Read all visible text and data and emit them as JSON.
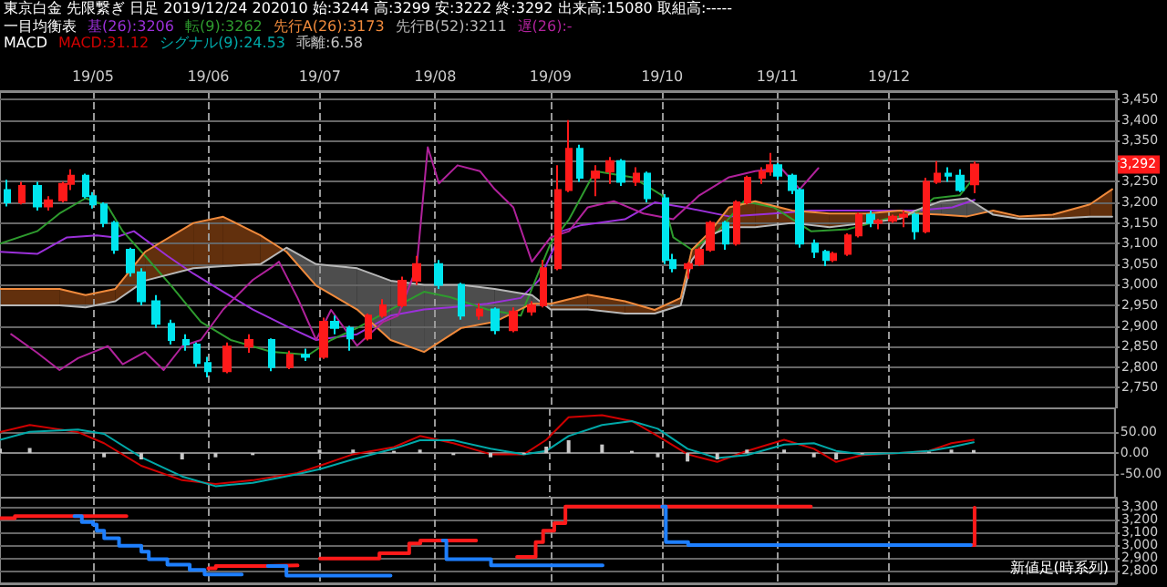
{
  "chart_data": [
    {
      "type": "candlestick",
      "title": "東京白金 先限繋ぎ 日足 2019/12/24 202010 始:3244 高:3299 安:3222 終:3292 出来高:15080 取組高:-----",
      "legend_title": "一目均衡表",
      "legend": "top left",
      "grid": true,
      "xlim": [
        "2019-04-06",
        "2020-01-31"
      ],
      "xticks": [
        {
          "value": "2019-05-01",
          "label": "19/05"
        },
        {
          "value": "2019-06-01",
          "label": "19/06"
        },
        {
          "value": "2019-07-01",
          "label": "19/07"
        },
        {
          "value": "2019-08-01",
          "label": "19/08"
        },
        {
          "value": "2019-09-01",
          "label": "19/09"
        },
        {
          "value": "2019-10-01",
          "label": "19/10"
        },
        {
          "value": "2019-11-01",
          "label": "19/11"
        },
        {
          "value": "2019-12-01",
          "label": "19/12"
        }
      ],
      "ylim": [
        2700,
        3470
      ],
      "yticks": [
        {
          "value": 2750,
          "label": "2,750"
        },
        {
          "value": 2800,
          "label": "2,800"
        },
        {
          "value": 2850,
          "label": "2,850"
        },
        {
          "value": 2900,
          "label": "2,900"
        },
        {
          "value": 2950,
          "label": "2,950"
        },
        {
          "value": 3000,
          "label": "3,000"
        },
        {
          "value": 3050,
          "label": "3,050"
        },
        {
          "value": 3100,
          "label": "3,100"
        },
        {
          "value": 3150,
          "label": "3,150"
        },
        {
          "value": 3200,
          "label": "3,200"
        },
        {
          "value": 3250,
          "label": "3,250"
        },
        {
          "value": 3300,
          "label": null
        },
        {
          "value": 3350,
          "label": "3,350"
        },
        {
          "value": 3400,
          "label": "3,400"
        },
        {
          "value": 3450,
          "label": "3,450"
        }
      ],
      "annotations": [
        {
          "text": "3,292",
          "y": 3292
        }
      ],
      "series": [
        {
          "colors": [
            "#00e5ee",
            "#ff1a1a",
            "#00e5ee",
            "#ff1a1a",
            "#ff1a1a",
            "#ff1a1a",
            "#00e5ee",
            "#00e5ee",
            "#00e5ee",
            "#00e5ee",
            "#00e5ee",
            "#00e5ee",
            "#00e5ee",
            "#00e5ee",
            "#00e5ee",
            "#00e5ee",
            "#00e5ee",
            "#ff1a1a",
            "#ff1a1a",
            "#00e5ee",
            "#ff1a1a",
            "#00e5ee",
            "#ff1a1a",
            "#00e5ee",
            "#00e5ee",
            "#ff1a1a",
            "#ff1a1a",
            "#ff1a1a",
            "#ff1a1a",
            "#00e5ee",
            "#00e5ee",
            "#ff1a1a",
            "#00e5ee",
            "#ff1a1a",
            "#ff1a1a",
            "#ff1a1a",
            "#ff1a1a",
            "#ff1a1a",
            "#00e5ee",
            "#ff1a1a",
            "#ff1a1a",
            "#00e5ee",
            "#ff1a1a",
            "#00e5ee",
            "#00e5ee",
            "#00e5ee",
            "#ff1a1a",
            "#ff1a1a",
            "#ff1a1a",
            "#00e5ee",
            "#ff1a1a",
            "#ff1a1a",
            "#ff1a1a",
            "#ff1a1a",
            "#00e5ee",
            "#00e5ee",
            "#00e5ee",
            "#00e5ee",
            "#00e5ee",
            "#ff1a1a",
            "#ff1a1a",
            "#ff1a1a",
            "#00e5ee",
            "#ff1a1a",
            "#ff1a1a",
            "#ff1a1a",
            "#00e5ee",
            "#ff1a1a",
            "#ff1a1a",
            "#00e5ee",
            "#00e5ee",
            "#ff1a1a"
          ],
          "x": [
            "2019-04-08",
            "2019-04-12",
            "2019-04-16",
            "2019-04-19",
            "2019-04-23",
            "2019-04-25",
            "2019-04-29",
            "2019-05-01",
            "2019-05-04",
            "2019-05-07",
            "2019-05-11",
            "2019-05-14",
            "2019-05-18",
            "2019-05-22",
            "2019-05-26",
            "2019-05-29",
            "2019-06-01",
            "2019-06-06",
            "2019-06-12",
            "2019-06-18",
            "2019-06-23",
            "2019-06-27",
            "2019-07-02",
            "2019-07-05",
            "2019-07-09",
            "2019-07-14",
            "2019-07-18",
            "2019-07-23",
            "2019-07-27",
            "2019-08-02",
            "2019-08-08",
            "2019-08-13",
            "2019-08-17",
            "2019-08-22",
            "2019-08-27",
            "2019-08-30",
            "2019-09-03",
            "2019-09-06",
            "2019-09-09",
            "2019-09-13",
            "2019-09-17",
            "2019-09-20",
            "2019-09-24",
            "2019-09-27",
            "2019-10-02",
            "2019-10-04",
            "2019-10-08",
            "2019-10-11",
            "2019-10-14",
            "2019-10-18",
            "2019-10-21",
            "2019-10-24",
            "2019-10-28",
            "2019-10-30",
            "2019-11-01",
            "2019-11-05",
            "2019-11-07",
            "2019-11-11",
            "2019-11-14",
            "2019-11-16",
            "2019-11-20",
            "2019-11-23",
            "2019-11-26",
            "2019-11-28",
            "2019-12-02",
            "2019-12-05",
            "2019-12-08",
            "2019-12-11",
            "2019-12-14",
            "2019-12-17",
            "2019-12-20",
            "2019-12-24"
          ],
          "ohlc": [
            [
              3230,
              3255,
              3190,
              3200
            ],
            [
              3200,
              3250,
              3195,
              3240
            ],
            [
              3240,
              3250,
              3180,
              3190
            ],
            [
              3190,
              3215,
              3180,
              3205
            ],
            [
              3205,
              3250,
              3200,
              3245
            ],
            [
              3245,
              3280,
              3230,
              3265
            ],
            [
              3265,
              3270,
              3210,
              3215
            ],
            [
              3215,
              3225,
              3185,
              3195
            ],
            [
              3195,
              3200,
              3140,
              3150
            ],
            [
              3150,
              3155,
              3075,
              3085
            ],
            [
              3085,
              3090,
              3020,
              3030
            ],
            [
              3030,
              3040,
              2950,
              2960
            ],
            [
              2960,
              2975,
              2895,
              2905
            ],
            [
              2905,
              2915,
              2855,
              2866
            ],
            [
              2866,
              2880,
              2840,
              2855
            ],
            [
              2855,
              2860,
              2800,
              2810
            ],
            [
              2810,
              2825,
              2775,
              2790
            ],
            [
              2790,
              2860,
              2785,
              2850
            ],
            [
              2850,
              2880,
              2835,
              2866
            ],
            [
              2866,
              2870,
              2790,
              2800
            ],
            [
              2800,
              2840,
              2795,
              2830
            ],
            [
              2830,
              2845,
              2815,
              2825
            ],
            [
              2825,
              2920,
              2820,
              2910
            ],
            [
              2910,
              2925,
              2880,
              2895
            ],
            [
              2895,
              2900,
              2840,
              2870
            ],
            [
              2870,
              2930,
              2865,
              2925
            ],
            [
              2925,
              2965,
              2920,
              2950
            ],
            [
              2950,
              3020,
              2945,
              3010
            ],
            [
              3010,
              3070,
              3000,
              3050
            ],
            [
              3050,
              3060,
              2990,
              3000
            ],
            [
              3000,
              3005,
              2915,
              2925
            ],
            [
              2925,
              2955,
              2915,
              2940
            ],
            [
              2940,
              2945,
              2880,
              2890
            ],
            [
              2890,
              2945,
              2885,
              2935
            ],
            [
              2935,
              2960,
              2925,
              2950
            ],
            [
              2950,
              3060,
              2945,
              3040
            ],
            [
              3040,
              3290,
              3035,
              3230
            ],
            [
              3230,
              3400,
              3225,
              3330
            ],
            [
              3330,
              3340,
              3250,
              3260
            ],
            [
              3260,
              3290,
              3215,
              3275
            ],
            [
              3275,
              3310,
              3245,
              3300
            ],
            [
              3300,
              3305,
              3240,
              3250
            ],
            [
              3250,
              3285,
              3240,
              3270
            ],
            [
              3270,
              3275,
              3200,
              3210
            ],
            [
              3210,
              3220,
              3050,
              3060
            ],
            [
              3060,
              3075,
              3030,
              3040
            ],
            [
              3040,
              3055,
              3015,
              3050
            ],
            [
              3050,
              3090,
              3045,
              3085
            ],
            [
              3085,
              3155,
              3080,
              3150
            ],
            [
              3150,
              3155,
              3085,
              3100
            ],
            [
              3100,
              3205,
              3095,
              3200
            ],
            [
              3200,
              3265,
              3195,
              3260
            ],
            [
              3260,
              3285,
              3245,
              3275
            ],
            [
              3275,
              3320,
              3265,
              3290
            ],
            [
              3290,
              3295,
              3255,
              3265
            ],
            [
              3265,
              3270,
              3220,
              3230
            ],
            [
              3230,
              3235,
              3090,
              3100
            ],
            [
              3100,
              3110,
              3065,
              3080
            ],
            [
              3080,
              3085,
              3045,
              3060
            ],
            [
              3060,
              3080,
              3055,
              3075
            ],
            [
              3075,
              3125,
              3070,
              3120
            ],
            [
              3120,
              3175,
              3115,
              3170
            ],
            [
              3170,
              3180,
              3140,
              3150
            ],
            [
              3150,
              3160,
              3135,
              3155
            ],
            [
              3155,
              3170,
              3150,
              3165
            ],
            [
              3165,
              3180,
              3140,
              3170
            ],
            [
              3170,
              3175,
              3110,
              3130
            ],
            [
              3130,
              3260,
              3125,
              3250
            ],
            [
              3250,
              3300,
              3245,
              3270
            ],
            [
              3270,
              3285,
              3250,
              3265
            ],
            [
              3265,
              3280,
              3225,
              3230
            ],
            [
              3244,
              3299,
              3222,
              3292
            ]
          ]
        },
        {
          "type": "line",
          "name": "基(26):3206",
          "color": "#9b30d9",
          "x": [
            "2019-04-06",
            "2019-04-16",
            "2019-04-24",
            "2019-05-02",
            "2019-05-07",
            "2019-05-12",
            "2019-05-21",
            "2019-05-28",
            "2019-06-05",
            "2019-06-13",
            "2019-06-23",
            "2019-06-30",
            "2019-07-11",
            "2019-07-20",
            "2019-07-29",
            "2019-08-05",
            "2019-08-15",
            "2019-08-24",
            "2019-08-29",
            "2019-09-04",
            "2019-09-09",
            "2019-09-21",
            "2019-09-29",
            "2019-10-07",
            "2019-10-19",
            "2019-10-31",
            "2019-11-10",
            "2019-11-25",
            "2019-12-08",
            "2019-12-18",
            "2019-12-24"
          ],
          "values": [
            3080,
            3075,
            3115,
            3120,
            3115,
            3130,
            3070,
            3027,
            2983,
            2940,
            2895,
            2866,
            2880,
            2925,
            2940,
            2945,
            2954,
            2968,
            3012,
            3130,
            3144,
            3159,
            3200,
            3188,
            3166,
            3173,
            3180,
            3180,
            3180,
            3188,
            3206
          ]
        },
        {
          "type": "line",
          "name": "転(9):3262",
          "color": "#2e9b2e",
          "x": [
            "2019-04-06",
            "2019-04-16",
            "2019-04-22",
            "2019-04-29",
            "2019-05-05",
            "2019-05-09",
            "2019-05-15",
            "2019-05-22",
            "2019-05-30",
            "2019-06-07",
            "2019-06-18",
            "2019-06-28",
            "2019-07-04",
            "2019-07-11",
            "2019-07-20",
            "2019-07-29",
            "2019-08-05",
            "2019-08-15",
            "2019-08-24",
            "2019-09-01",
            "2019-09-06",
            "2019-09-13",
            "2019-09-23",
            "2019-10-01",
            "2019-10-04",
            "2019-10-09",
            "2019-10-16",
            "2019-10-23",
            "2019-10-31",
            "2019-11-10",
            "2019-11-20",
            "2019-11-30",
            "2019-12-08",
            "2019-12-13",
            "2019-12-20",
            "2019-12-24"
          ],
          "values": [
            3100,
            3130,
            3173,
            3210,
            3190,
            3130,
            3070,
            2998,
            2910,
            2866,
            2837,
            2830,
            2866,
            2895,
            2940,
            2983,
            2970,
            2940,
            2925,
            3100,
            3159,
            3276,
            3261,
            3217,
            3115,
            3085,
            3130,
            3203,
            3188,
            3130,
            3135,
            3159,
            3173,
            3210,
            3217,
            3262
          ]
        },
        {
          "type": "line",
          "name": "先行A(26):3173",
          "color": "#f08a3c",
          "x": [
            "2019-04-06",
            "2019-04-22",
            "2019-04-29",
            "2019-05-07",
            "2019-05-15",
            "2019-05-28",
            "2019-06-05",
            "2019-06-15",
            "2019-06-22",
            "2019-06-30",
            "2019-07-11",
            "2019-07-20",
            "2019-07-29",
            "2019-08-08",
            "2019-08-17",
            "2019-08-27",
            "2019-09-01",
            "2019-09-11",
            "2019-09-21",
            "2019-09-29",
            "2019-10-06",
            "2019-10-09",
            "2019-10-14",
            "2019-10-19",
            "2019-10-26",
            "2019-11-05",
            "2019-11-15",
            "2019-11-25",
            "2019-12-04",
            "2019-12-08",
            "2019-12-15",
            "2019-12-22",
            "2019-12-29",
            "2020-01-05",
            "2020-01-14",
            "2020-01-24",
            "2020-01-30"
          ],
          "values": [
            2990,
            2990,
            2975,
            2990,
            3080,
            3150,
            3165,
            3120,
            3080,
            2998,
            2940,
            2866,
            2837,
            2895,
            2910,
            2954,
            2954,
            2976,
            2960,
            2939,
            2968,
            3085,
            3130,
            3188,
            3203,
            3180,
            3173,
            3173,
            3180,
            3173,
            3170,
            3166,
            3180,
            3166,
            3170,
            3195,
            3232
          ]
        },
        {
          "type": "line",
          "name": "先行B(52):3211",
          "color": "#b8b8b8",
          "x": [
            "2019-04-06",
            "2019-04-22",
            "2019-04-29",
            "2019-05-07",
            "2019-05-15",
            "2019-05-28",
            "2019-06-05",
            "2019-06-15",
            "2019-06-22",
            "2019-06-30",
            "2019-07-11",
            "2019-07-20",
            "2019-07-29",
            "2019-08-08",
            "2019-08-17",
            "2019-08-27",
            "2019-09-01",
            "2019-09-11",
            "2019-09-21",
            "2019-09-29",
            "2019-10-06",
            "2019-10-09",
            "2019-10-14",
            "2019-10-19",
            "2019-10-26",
            "2019-11-05",
            "2019-11-15",
            "2019-11-25",
            "2019-12-04",
            "2019-12-08",
            "2019-12-15",
            "2019-12-22",
            "2019-12-29",
            "2020-01-05",
            "2020-01-14",
            "2020-01-24",
            "2020-01-30"
          ],
          "values": [
            2950,
            2950,
            2945,
            2960,
            3010,
            3040,
            3045,
            3050,
            3090,
            3050,
            3040,
            3010,
            3000,
            3000,
            2990,
            2975,
            2940,
            2940,
            2930,
            2930,
            2950,
            3060,
            3120,
            3140,
            3140,
            3150,
            3140,
            3150,
            3160,
            3180,
            3203,
            3210,
            3170,
            3160,
            3160,
            3165,
            3165
          ]
        },
        {
          "type": "line",
          "name": "遅(26):-",
          "color": "#b0229b",
          "x": [
            "2019-04-09",
            "2019-04-16",
            "2019-04-22",
            "2019-04-27",
            "2019-05-05",
            "2019-05-09",
            "2019-05-15",
            "2019-05-20",
            "2019-05-25",
            "2019-05-30",
            "2019-06-05",
            "2019-06-13",
            "2019-06-18",
            "2019-06-20",
            "2019-06-25",
            "2019-06-30",
            "2019-07-04",
            "2019-07-11",
            "2019-07-18",
            "2019-07-22",
            "2019-07-27",
            "2019-07-30",
            "2019-08-02",
            "2019-08-07",
            "2019-08-13",
            "2019-08-17",
            "2019-08-22",
            "2019-08-27",
            "2019-09-01",
            "2019-09-06",
            "2019-09-11",
            "2019-09-18",
            "2019-09-26",
            "2019-10-04",
            "2019-10-11",
            "2019-10-19",
            "2019-10-26",
            "2019-11-02",
            "2019-11-07",
            "2019-11-12"
          ],
          "values": [
            2880,
            2835,
            2793,
            2822,
            2851,
            2807,
            2837,
            2793,
            2851,
            2866,
            2940,
            3012,
            3042,
            3056,
            2968,
            2866,
            2939,
            2852,
            2910,
            2925,
            3042,
            3334,
            3246,
            3290,
            3276,
            3232,
            3188,
            3056,
            3115,
            3130,
            3188,
            3203,
            3173,
            3159,
            3217,
            3261,
            3276,
            3283,
            3232,
            3283
          ]
        }
      ]
    },
    {
      "type": "line",
      "legend_title": "MACD",
      "legend": "top left",
      "grid": true,
      "tick_labels": "y",
      "xlim": [
        "2019-04-06",
        "2020-01-31"
      ],
      "xticks": [
        {
          "value": "2019-05-01",
          "label": null
        },
        {
          "value": "2019-06-01",
          "label": null
        },
        {
          "value": "2019-07-01",
          "label": null
        },
        {
          "value": "2019-08-01",
          "label": null
        },
        {
          "value": "2019-09-01",
          "label": null
        },
        {
          "value": "2019-10-01",
          "label": null
        },
        {
          "value": "2019-11-01",
          "label": null
        },
        {
          "value": "2019-12-01",
          "label": null
        }
      ],
      "ylim": [
        -105,
        105
      ],
      "yticks": [
        {
          "value": -50,
          "label": "-50.00"
        },
        {
          "value": 0,
          "label": "0.00"
        },
        {
          "value": 50,
          "label": "50.00"
        }
      ],
      "x": [
        "2019-04-06",
        "2019-04-14",
        "2019-04-27",
        "2019-05-04",
        "2019-05-14",
        "2019-05-25",
        "2019-06-03",
        "2019-06-13",
        "2019-06-25",
        "2019-07-01",
        "2019-07-10",
        "2019-07-21",
        "2019-07-28",
        "2019-08-06",
        "2019-08-16",
        "2019-08-25",
        "2019-08-31",
        "2019-09-06",
        "2019-09-15",
        "2019-09-23",
        "2019-09-30",
        "2019-10-08",
        "2019-10-16",
        "2019-10-24",
        "2019-11-03",
        "2019-11-11",
        "2019-11-17",
        "2019-11-24",
        "2019-12-04",
        "2019-12-12",
        "2019-12-18",
        "2019-12-24"
      ],
      "series": [
        {
          "name": "MACD:31.12",
          "color": "#d00000",
          "values": [
            49,
            66,
            49,
            23,
            -30,
            -64,
            -73,
            -64,
            -47,
            -30,
            -3,
            14,
            40,
            23,
            -3,
            -3,
            31,
            84,
            89,
            75,
            40,
            -3,
            -21,
            5,
            31,
            10,
            -21,
            -5,
            0,
            5,
            23,
            31
          ]
        },
        {
          "name": "シグナル(9):24.53",
          "color": "#00a8a8",
          "values": [
            31,
            50,
            55,
            45,
            -10,
            -55,
            -78,
            -70,
            -50,
            -38,
            -15,
            10,
            30,
            30,
            10,
            -3,
            5,
            40,
            66,
            75,
            57,
            10,
            -12,
            -5,
            20,
            23,
            5,
            -3,
            0,
            5,
            14,
            25
          ]
        },
        {
          "type": "bar",
          "name": "乖離:6.58",
          "color": "#c8c8c8",
          "values": [
            10,
            12,
            0,
            -10,
            -15,
            -15,
            -10,
            -5,
            0,
            8,
            8,
            5,
            8,
            -5,
            -10,
            -3,
            15,
            30,
            20,
            5,
            -10,
            -20,
            -15,
            8,
            8,
            -10,
            -15,
            -3,
            0,
            3,
            8,
            7
          ]
        }
      ]
    },
    {
      "type": "step",
      "title": "新値足(時系列)",
      "grid": true,
      "tick_labels": "y",
      "xlim": [
        "2019-04-06",
        "2020-01-31"
      ],
      "xticks": [
        {
          "value": "2019-05-01",
          "label": null
        },
        {
          "value": "2019-06-01",
          "label": null
        },
        {
          "value": "2019-07-01",
          "label": null
        },
        {
          "value": "2019-08-01",
          "label": null
        },
        {
          "value": "2019-09-01",
          "label": null
        },
        {
          "value": "2019-10-01",
          "label": null
        },
        {
          "value": "2019-11-01",
          "label": null
        },
        {
          "value": "2019-12-01",
          "label": null
        }
      ],
      "ylim": [
        2700,
        3370
      ],
      "yticks": [
        {
          "value": 2800,
          "label": "2,800"
        },
        {
          "value": 2900,
          "label": "2,900"
        },
        {
          "value": 3000,
          "label": "3,000"
        },
        {
          "value": 3100,
          "label": "3,100"
        },
        {
          "value": 3200,
          "label": "3,200"
        },
        {
          "value": 3300,
          "label": "3,300"
        }
      ],
      "series": [
        {
          "color": "#ff1a1a",
          "x": [
            "2019-04-06",
            "2019-04-10",
            "2019-04-26",
            "2019-05-10",
            "2019-06-01",
            "2019-06-03",
            "2019-06-17",
            "2019-06-25",
            "2019-07-01",
            "2019-07-17",
            "2019-07-25",
            "2019-07-28",
            "2019-08-03",
            "2019-08-12",
            "2019-08-23",
            "2019-08-28",
            "2019-08-30",
            "2019-09-02",
            "2019-09-05",
            "2019-10-01",
            "2019-11-10",
            "2019-12-23",
            "2019-12-24"
          ],
          "values": [
            3210,
            3225,
            3225,
            null,
            2818,
            2835,
            2840,
            null,
            2894,
            2935,
            3012,
            3035,
            3035,
            null,
            2906,
            3023,
            3112,
            3170,
            3300,
            3300,
            null,
            3000,
            3292
          ]
        },
        {
          "color": "#1e7fff",
          "x": [
            "2019-04-26",
            "2019-04-28",
            "2019-05-01",
            "2019-05-02",
            "2019-05-04",
            "2019-05-08",
            "2019-05-14",
            "2019-05-16",
            "2019-05-21",
            "2019-05-27",
            "2019-05-31",
            "2019-06-01",
            "2019-06-10",
            "2019-06-17",
            "2019-06-22",
            "2019-07-01",
            "2019-07-20",
            "2019-08-03",
            "2019-08-04",
            "2019-08-14",
            "2019-08-16",
            "2019-08-23",
            "2019-09-15",
            "2019-10-01",
            "2019-10-02",
            "2019-10-07",
            "2019-10-08",
            "2019-12-23"
          ],
          "values": [
            3225,
            3180,
            3160,
            3112,
            3053,
            2994,
            2947,
            2888,
            2847,
            2806,
            2770,
            2770,
            null,
            2835,
            2760,
            2760,
            null,
            3035,
            2888,
            2888,
            2841,
            2841,
            null,
            3300,
            3023,
            3023,
            3000,
            3000
          ]
        }
      ]
    }
  ]
}
